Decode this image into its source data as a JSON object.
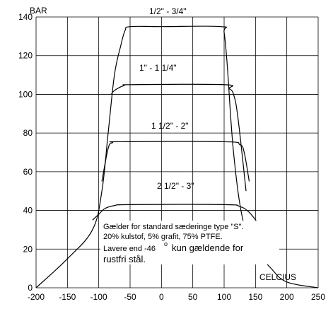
{
  "chart_data": {
    "type": "line",
    "xlabel": "CELCIUS",
    "ylabel": "BAR",
    "xlim": [
      -200,
      250
    ],
    "ylim": [
      0,
      140
    ],
    "xticks": [
      "-200",
      "-150",
      "-100",
      "-50",
      "0",
      "50",
      "100",
      "150",
      "200",
      "250"
    ],
    "yticks": [
      "0",
      "20",
      "40",
      "60",
      "80",
      "100",
      "120",
      "140"
    ],
    "grid": true,
    "series": [
      {
        "name": "1/2\" - 3/4\"",
        "points": [
          [
            -200,
            0
          ],
          [
            -150,
            15
          ],
          [
            -110,
            30
          ],
          [
            -95,
            50
          ],
          [
            -85,
            80
          ],
          [
            -75,
            110
          ],
          [
            -65,
            125
          ],
          [
            -58,
            133
          ],
          [
            -50,
            135
          ],
          [
            0,
            135
          ],
          [
            95,
            135
          ],
          [
            100,
            132
          ],
          [
            105,
            115
          ],
          [
            115,
            70
          ],
          [
            130,
            35
          ],
          [
            150,
            20
          ],
          [
            175,
            10
          ],
          [
            200,
            3
          ],
          [
            250,
            0
          ]
        ]
      },
      {
        "name": "1\" - 1 1/4\"",
        "points": [
          [
            -80,
            100
          ],
          [
            -75,
            102
          ],
          [
            -60,
            104.5
          ],
          [
            -45,
            105
          ],
          [
            100,
            105
          ],
          [
            108,
            103
          ],
          [
            115,
            100
          ],
          [
            122,
            88
          ],
          [
            135,
            50
          ]
        ]
      },
      {
        "name": "1 1/2\" - 2\"",
        "points": [
          [
            -95,
            55
          ],
          [
            -85,
            72
          ],
          [
            -78,
            75
          ],
          [
            -65,
            75.5
          ],
          [
            100,
            75.5
          ],
          [
            125,
            74
          ],
          [
            132,
            70
          ],
          [
            140,
            55
          ]
        ]
      },
      {
        "name": "2 1/2\" -  3\"",
        "points": [
          [
            -110,
            35
          ],
          [
            -100,
            38
          ],
          [
            -90,
            41
          ],
          [
            -75,
            42.5
          ],
          [
            -50,
            43
          ],
          [
            100,
            43
          ],
          [
            125,
            42
          ],
          [
            140,
            39
          ],
          [
            155,
            33
          ]
        ]
      }
    ],
    "annotations": [
      "Gælder for standard sæderinge type \"S\".",
      "20% kulstof, 5% grafit, 75% PTFE.",
      "Lavere end -46",
      "o",
      "kun gældende for",
      "rustfri stål."
    ]
  }
}
